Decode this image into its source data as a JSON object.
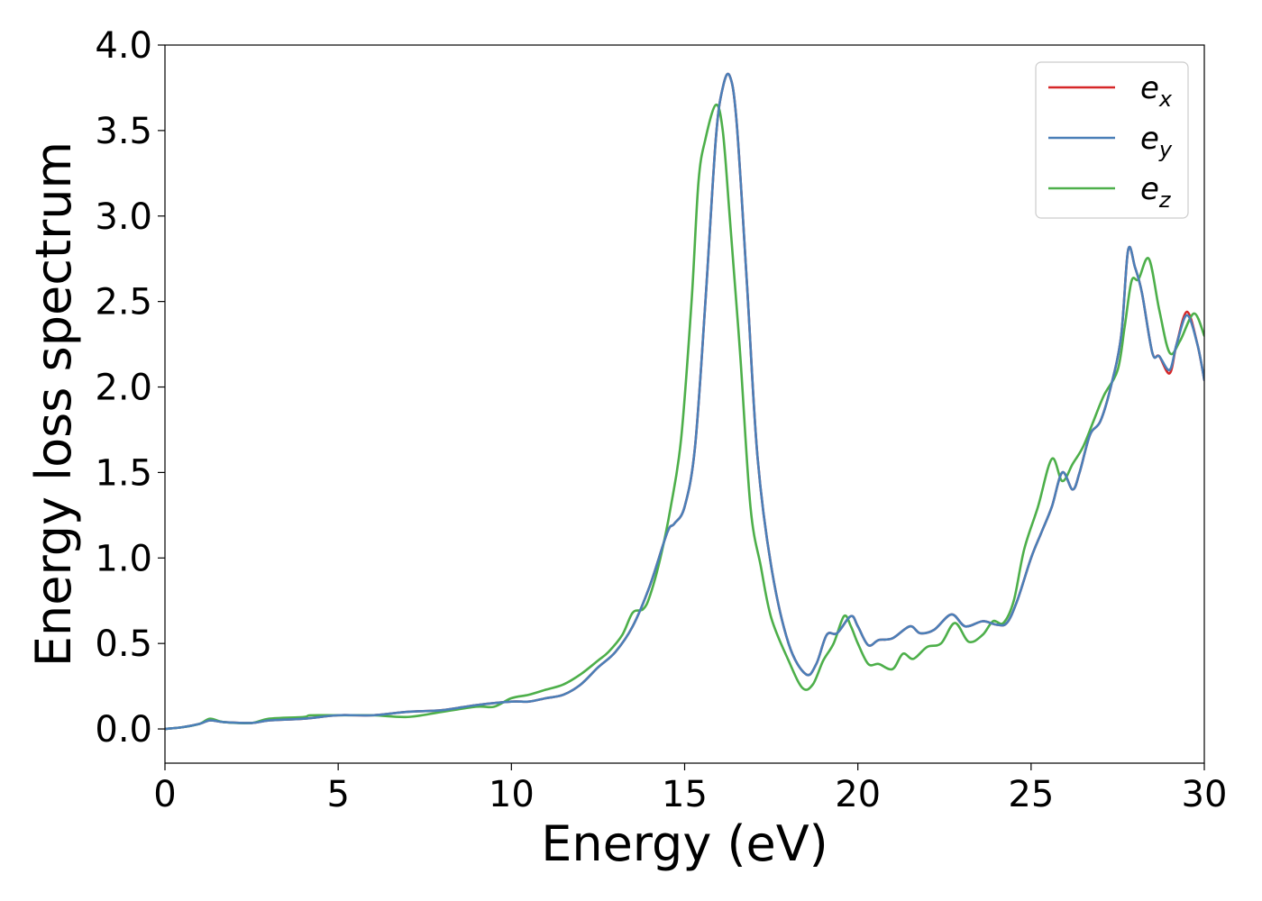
{
  "chart_data": {
    "type": "line",
    "xlabel": "Energy (eV)",
    "ylabel": "Energy loss spectrum",
    "xlim": [
      0,
      30
    ],
    "ylim": [
      -0.2,
      4.0
    ],
    "xticks": [
      "0",
      "5",
      "10",
      "15",
      "20",
      "25",
      "30"
    ],
    "yticks": [
      "0.0",
      "0.5",
      "1.0",
      "1.5",
      "2.0",
      "2.5",
      "3.0",
      "3.5",
      "4.0"
    ],
    "grid": false,
    "legend_position": "top-right",
    "series": [
      {
        "name": "e_x",
        "label_main": "e",
        "label_sub": "x",
        "color": "#d62728",
        "points": [
          [
            0,
            0
          ],
          [
            0.5,
            0.01
          ],
          [
            1.0,
            0.03
          ],
          [
            1.3,
            0.05
          ],
          [
            1.7,
            0.04
          ],
          [
            2.5,
            0.035
          ],
          [
            3,
            0.05
          ],
          [
            4,
            0.06
          ],
          [
            5,
            0.08
          ],
          [
            6,
            0.08
          ],
          [
            7,
            0.1
          ],
          [
            8,
            0.11
          ],
          [
            9,
            0.14
          ],
          [
            10,
            0.16
          ],
          [
            10.5,
            0.16
          ],
          [
            11,
            0.18
          ],
          [
            11.5,
            0.2
          ],
          [
            12,
            0.26
          ],
          [
            12.5,
            0.36
          ],
          [
            13,
            0.45
          ],
          [
            13.5,
            0.6
          ],
          [
            14,
            0.84
          ],
          [
            14.5,
            1.15
          ],
          [
            14.7,
            1.2
          ],
          [
            15,
            1.3
          ],
          [
            15.3,
            1.65
          ],
          [
            15.6,
            2.5
          ],
          [
            15.9,
            3.45
          ],
          [
            16.1,
            3.75
          ],
          [
            16.3,
            3.82
          ],
          [
            16.5,
            3.55
          ],
          [
            16.8,
            2.6
          ],
          [
            17.1,
            1.6
          ],
          [
            17.5,
            0.95
          ],
          [
            18,
            0.5
          ],
          [
            18.5,
            0.32
          ],
          [
            18.8,
            0.38
          ],
          [
            19.1,
            0.55
          ],
          [
            19.4,
            0.56
          ],
          [
            19.8,
            0.66
          ],
          [
            20,
            0.6
          ],
          [
            20.3,
            0.49
          ],
          [
            20.6,
            0.52
          ],
          [
            21,
            0.53
          ],
          [
            21.5,
            0.6
          ],
          [
            21.8,
            0.56
          ],
          [
            22.2,
            0.58
          ],
          [
            22.7,
            0.67
          ],
          [
            23.1,
            0.6
          ],
          [
            23.6,
            0.63
          ],
          [
            24,
            0.61
          ],
          [
            24.3,
            0.62
          ],
          [
            24.6,
            0.75
          ],
          [
            25,
            1.0
          ],
          [
            25.3,
            1.15
          ],
          [
            25.6,
            1.3
          ],
          [
            25.9,
            1.5
          ],
          [
            26.2,
            1.4
          ],
          [
            26.4,
            1.5
          ],
          [
            26.7,
            1.72
          ],
          [
            27,
            1.8
          ],
          [
            27.3,
            2.0
          ],
          [
            27.6,
            2.3
          ],
          [
            27.8,
            2.8
          ],
          [
            28,
            2.7
          ],
          [
            28.2,
            2.55
          ],
          [
            28.5,
            2.2
          ],
          [
            28.7,
            2.18
          ],
          [
            29,
            2.08
          ],
          [
            29.2,
            2.25
          ],
          [
            29.5,
            2.44
          ],
          [
            29.8,
            2.25
          ],
          [
            30,
            2.04
          ]
        ]
      },
      {
        "name": "e_y",
        "label_main": "e",
        "label_sub": "y",
        "color": "#4a7fb8",
        "points": [
          [
            0,
            0
          ],
          [
            0.5,
            0.01
          ],
          [
            1.0,
            0.03
          ],
          [
            1.3,
            0.05
          ],
          [
            1.7,
            0.04
          ],
          [
            2.5,
            0.035
          ],
          [
            3,
            0.05
          ],
          [
            4,
            0.06
          ],
          [
            5,
            0.08
          ],
          [
            6,
            0.08
          ],
          [
            7,
            0.1
          ],
          [
            8,
            0.11
          ],
          [
            9,
            0.14
          ],
          [
            10,
            0.16
          ],
          [
            10.5,
            0.16
          ],
          [
            11,
            0.18
          ],
          [
            11.5,
            0.2
          ],
          [
            12,
            0.26
          ],
          [
            12.5,
            0.36
          ],
          [
            13,
            0.45
          ],
          [
            13.5,
            0.6
          ],
          [
            14,
            0.84
          ],
          [
            14.5,
            1.15
          ],
          [
            14.7,
            1.2
          ],
          [
            15,
            1.3
          ],
          [
            15.3,
            1.65
          ],
          [
            15.6,
            2.5
          ],
          [
            15.9,
            3.45
          ],
          [
            16.1,
            3.75
          ],
          [
            16.3,
            3.82
          ],
          [
            16.5,
            3.55
          ],
          [
            16.8,
            2.6
          ],
          [
            17.1,
            1.6
          ],
          [
            17.5,
            0.95
          ],
          [
            18,
            0.5
          ],
          [
            18.5,
            0.32
          ],
          [
            18.8,
            0.38
          ],
          [
            19.1,
            0.55
          ],
          [
            19.4,
            0.56
          ],
          [
            19.8,
            0.66
          ],
          [
            20,
            0.6
          ],
          [
            20.3,
            0.49
          ],
          [
            20.6,
            0.52
          ],
          [
            21,
            0.53
          ],
          [
            21.5,
            0.6
          ],
          [
            21.8,
            0.56
          ],
          [
            22.2,
            0.58
          ],
          [
            22.7,
            0.67
          ],
          [
            23.1,
            0.6
          ],
          [
            23.6,
            0.63
          ],
          [
            24,
            0.61
          ],
          [
            24.3,
            0.62
          ],
          [
            24.6,
            0.75
          ],
          [
            25,
            1.0
          ],
          [
            25.3,
            1.15
          ],
          [
            25.6,
            1.3
          ],
          [
            25.9,
            1.5
          ],
          [
            26.2,
            1.4
          ],
          [
            26.4,
            1.5
          ],
          [
            26.7,
            1.72
          ],
          [
            27,
            1.8
          ],
          [
            27.3,
            2.0
          ],
          [
            27.6,
            2.3
          ],
          [
            27.8,
            2.8
          ],
          [
            28,
            2.7
          ],
          [
            28.2,
            2.55
          ],
          [
            28.5,
            2.2
          ],
          [
            28.7,
            2.18
          ],
          [
            29,
            2.1
          ],
          [
            29.2,
            2.25
          ],
          [
            29.5,
            2.42
          ],
          [
            29.8,
            2.25
          ],
          [
            30,
            2.04
          ]
        ]
      },
      {
        "name": "e_z",
        "label_main": "e",
        "label_sub": "z",
        "color": "#4daf4a",
        "points": [
          [
            0,
            0
          ],
          [
            0.5,
            0.01
          ],
          [
            1.0,
            0.03
          ],
          [
            1.3,
            0.06
          ],
          [
            1.7,
            0.04
          ],
          [
            2.5,
            0.035
          ],
          [
            3,
            0.06
          ],
          [
            4,
            0.07
          ],
          [
            4.2,
            0.08
          ],
          [
            5,
            0.08
          ],
          [
            6,
            0.08
          ],
          [
            7,
            0.07
          ],
          [
            8,
            0.1
          ],
          [
            9,
            0.13
          ],
          [
            9.5,
            0.13
          ],
          [
            10,
            0.18
          ],
          [
            10.5,
            0.2
          ],
          [
            11,
            0.23
          ],
          [
            11.5,
            0.26
          ],
          [
            12,
            0.32
          ],
          [
            12.5,
            0.4
          ],
          [
            12.8,
            0.45
          ],
          [
            13.2,
            0.55
          ],
          [
            13.5,
            0.68
          ],
          [
            13.8,
            0.7
          ],
          [
            14,
            0.78
          ],
          [
            14.3,
            1.0
          ],
          [
            14.6,
            1.3
          ],
          [
            14.9,
            1.7
          ],
          [
            15.2,
            2.5
          ],
          [
            15.4,
            3.2
          ],
          [
            15.6,
            3.45
          ],
          [
            15.9,
            3.65
          ],
          [
            16.1,
            3.5
          ],
          [
            16.3,
            3.0
          ],
          [
            16.6,
            2.2
          ],
          [
            16.9,
            1.3
          ],
          [
            17.2,
            0.95
          ],
          [
            17.5,
            0.65
          ],
          [
            18,
            0.4
          ],
          [
            18.4,
            0.24
          ],
          [
            18.7,
            0.26
          ],
          [
            19,
            0.4
          ],
          [
            19.3,
            0.5
          ],
          [
            19.6,
            0.66
          ],
          [
            19.8,
            0.6
          ],
          [
            20,
            0.5
          ],
          [
            20.3,
            0.38
          ],
          [
            20.6,
            0.38
          ],
          [
            21,
            0.35
          ],
          [
            21.3,
            0.44
          ],
          [
            21.6,
            0.41
          ],
          [
            22,
            0.48
          ],
          [
            22.4,
            0.5
          ],
          [
            22.8,
            0.62
          ],
          [
            23.2,
            0.51
          ],
          [
            23.6,
            0.55
          ],
          [
            23.9,
            0.63
          ],
          [
            24.2,
            0.62
          ],
          [
            24.5,
            0.75
          ],
          [
            24.8,
            1.05
          ],
          [
            25.2,
            1.3
          ],
          [
            25.6,
            1.58
          ],
          [
            25.9,
            1.45
          ],
          [
            26.2,
            1.55
          ],
          [
            26.5,
            1.65
          ],
          [
            26.8,
            1.8
          ],
          [
            27.1,
            1.95
          ],
          [
            27.5,
            2.1
          ],
          [
            27.7,
            2.35
          ],
          [
            27.9,
            2.62
          ],
          [
            28.1,
            2.63
          ],
          [
            28.4,
            2.75
          ],
          [
            28.7,
            2.45
          ],
          [
            29,
            2.2
          ],
          [
            29.3,
            2.27
          ],
          [
            29.7,
            2.43
          ],
          [
            30,
            2.3
          ]
        ]
      }
    ]
  }
}
